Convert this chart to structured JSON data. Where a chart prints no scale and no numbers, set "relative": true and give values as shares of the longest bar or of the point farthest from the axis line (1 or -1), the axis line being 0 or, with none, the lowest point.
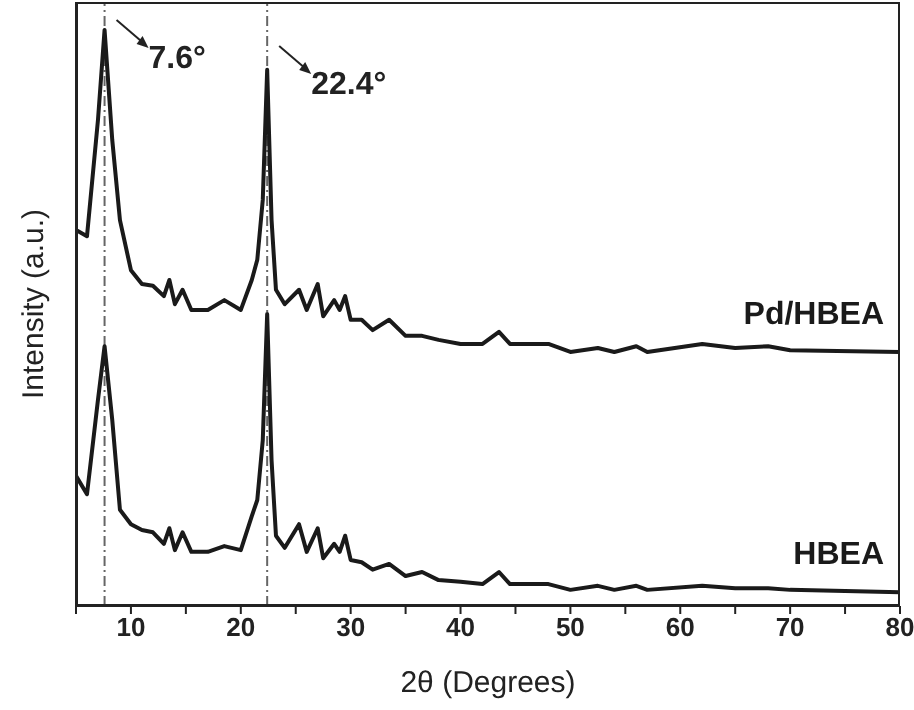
{
  "chart_data": {
    "type": "line",
    "relative": true,
    "xlabel": "2θ (Degrees)",
    "ylabel": "Intensity (a.u.)",
    "xlim": [
      5,
      80
    ],
    "xticks": [
      {
        "value": 5,
        "label": null
      },
      10,
      {
        "value": 15,
        "label": null
      },
      20,
      {
        "value": 25,
        "label": null
      },
      30,
      {
        "value": 35,
        "label": null
      },
      40,
      {
        "value": 45,
        "label": null
      },
      50,
      {
        "value": 55,
        "label": null
      },
      60,
      {
        "value": 65,
        "label": null
      },
      70,
      {
        "value": 75,
        "label": null
      },
      80
    ],
    "marker": "none",
    "line_style": "solid",
    "x": [
      5,
      6,
      7,
      7.6,
      8.3,
      9,
      10,
      11,
      12,
      13,
      13.5,
      14,
      14.7,
      15.5,
      17,
      18.5,
      20,
      21,
      21.5,
      22,
      22.4,
      22.8,
      23.2,
      24,
      25.3,
      26,
      27,
      27.5,
      28.5,
      29,
      29.5,
      30,
      31,
      32,
      33.5,
      35,
      36.5,
      38,
      40,
      42,
      43.5,
      44.5,
      48,
      50,
      52.5,
      54,
      56,
      57,
      62,
      65,
      68,
      70,
      80
    ],
    "series": [
      {
        "name": "Pd/HBEA",
        "color": "#1a1a1a",
        "values": [
          0.653,
          0.642,
          0.844,
          1,
          0.809,
          0.67,
          0.583,
          0.559,
          0.556,
          0.538,
          0.566,
          0.524,
          0.549,
          0.514,
          0.514,
          0.531,
          0.514,
          0.566,
          0.601,
          0.705,
          0.931,
          0.67,
          0.549,
          0.524,
          0.549,
          0.514,
          0.559,
          0.503,
          0.531,
          0.514,
          0.538,
          0.497,
          0.497,
          0.479,
          0.497,
          0.469,
          0.469,
          0.462,
          0.455,
          0.455,
          0.476,
          0.455,
          0.455,
          0.441,
          0.448,
          0.441,
          0.451,
          0.441,
          0.455,
          0.448,
          0.451,
          0.444,
          0.441
        ]
      },
      {
        "name": "HBEA",
        "color": "#1a1a1a",
        "values": [
          0.226,
          0.194,
          0.358,
          0.451,
          0.323,
          0.167,
          0.142,
          0.132,
          0.128,
          0.108,
          0.135,
          0.097,
          0.128,
          0.094,
          0.094,
          0.104,
          0.097,
          0.156,
          0.184,
          0.288,
          0.507,
          0.253,
          0.122,
          0.101,
          0.142,
          0.094,
          0.135,
          0.083,
          0.108,
          0.094,
          0.122,
          0.08,
          0.076,
          0.063,
          0.073,
          0.052,
          0.059,
          0.045,
          0.042,
          0.038,
          0.059,
          0.038,
          0.038,
          0.028,
          0.035,
          0.028,
          0.035,
          0.028,
          0.035,
          0.031,
          0.031,
          0.028,
          0.024
        ]
      }
    ],
    "ref_lines": [
      {
        "axis": "x",
        "value": 7.6,
        "label": "7.6°",
        "color": "#666666",
        "line_style": "dashed"
      },
      {
        "axis": "x",
        "value": 22.4,
        "label": "22.4°",
        "color": "#666666",
        "line_style": "dashed"
      }
    ]
  }
}
